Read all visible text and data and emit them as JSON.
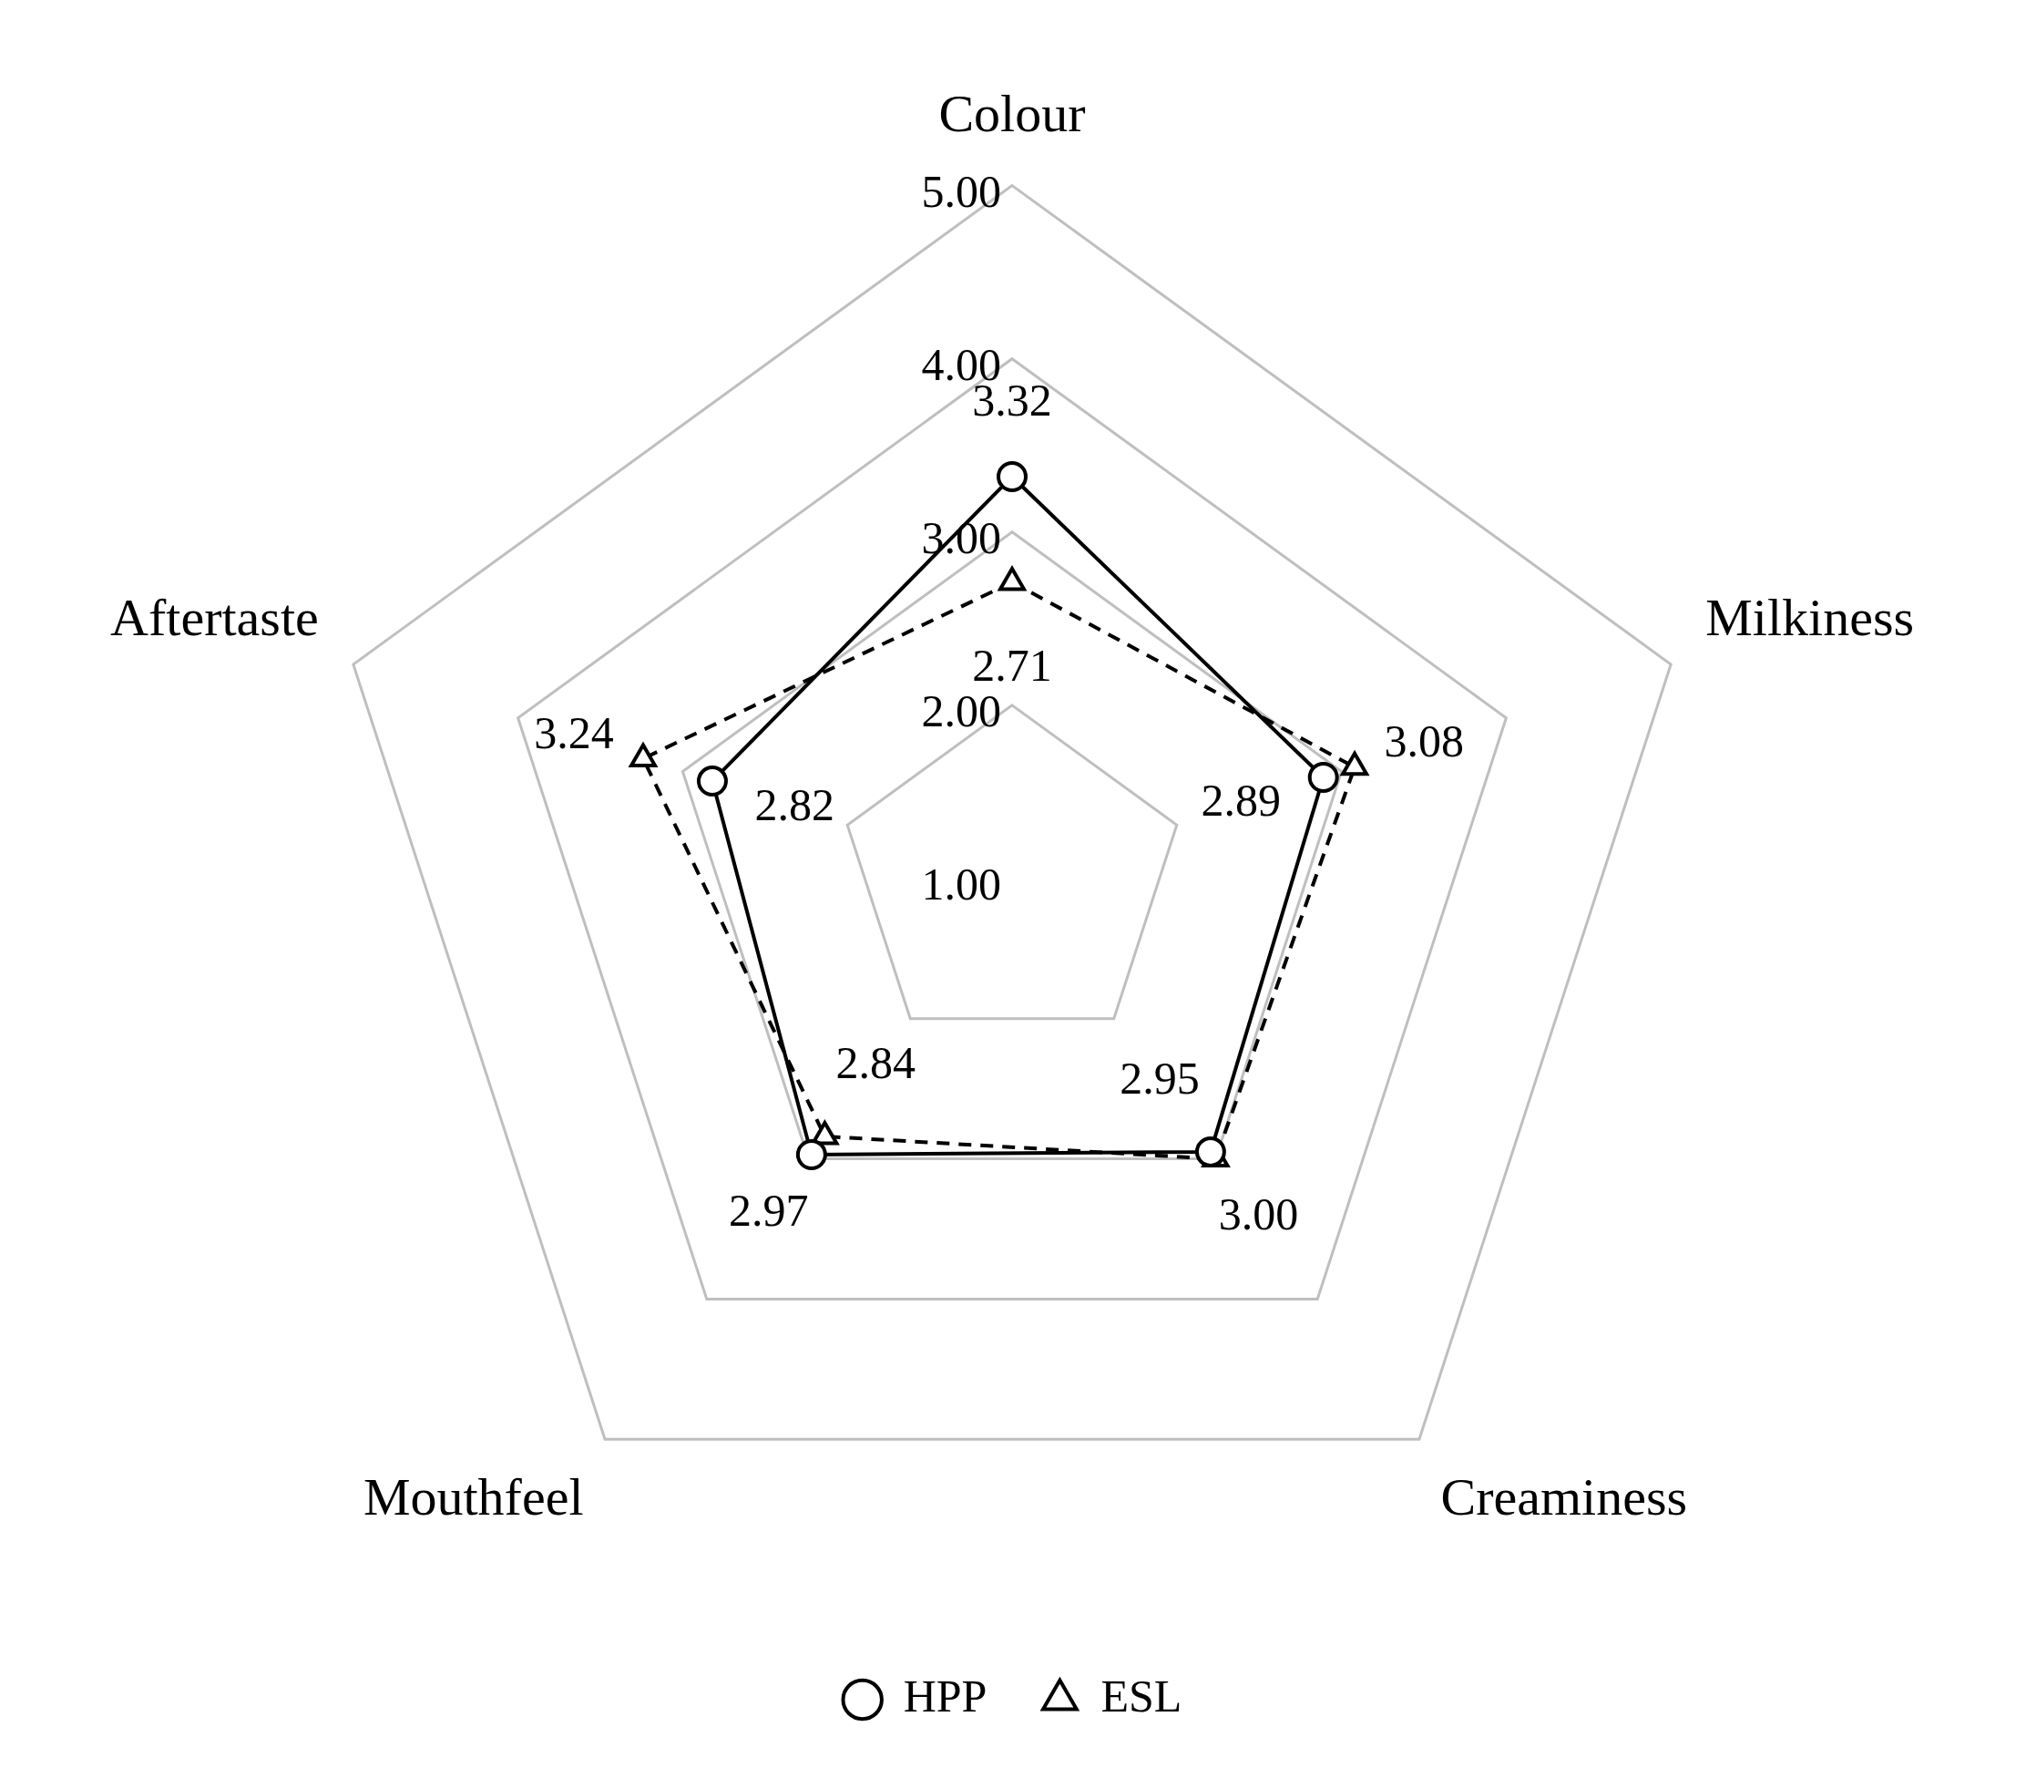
{
  "chart_data": {
    "type": "radar",
    "categories": [
      "Colour",
      "Milkiness",
      "Creaminess",
      "Mouthfeel",
      "Aftertaste"
    ],
    "ylim": [
      1,
      5
    ],
    "yticks": [
      {
        "value": 1,
        "label": "1.00"
      },
      {
        "value": 2,
        "label": "2.00"
      },
      {
        "value": 3,
        "label": "3.00"
      },
      {
        "value": 4,
        "label": "4.00"
      },
      {
        "value": 5,
        "label": "5.00"
      }
    ],
    "series": [
      {
        "name": "HPP",
        "color": "#000000",
        "marker": "circle",
        "line_style": "solid",
        "values": [
          3.32,
          2.89,
          2.95,
          2.97,
          2.82
        ],
        "value_labels": [
          "3.32",
          "2.89",
          "2.95",
          "2.97",
          "2.82"
        ]
      },
      {
        "name": "ESL",
        "color": "#000000",
        "marker": "triangle",
        "line_style": "dashed",
        "values": [
          2.71,
          3.08,
          3.0,
          2.84,
          3.24
        ],
        "value_labels": [
          "2.71",
          "3.08",
          "3.00",
          "2.84",
          "3.24"
        ]
      }
    ],
    "grid": true,
    "legend": "bottom"
  }
}
